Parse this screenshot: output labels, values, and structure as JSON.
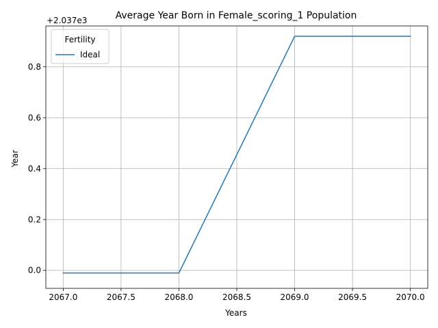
{
  "chart_data": {
    "type": "line",
    "title": "Average Year Born in Female_scoring_1 Population",
    "xlabel": "Years",
    "ylabel": "Year",
    "offset_text": "+2.037e3",
    "xlim": [
      2066.85,
      2070.15
    ],
    "ylim": [
      -0.0705,
      0.9605
    ],
    "x_ticks": [
      2067.0,
      2067.5,
      2068.0,
      2068.5,
      2069.0,
      2069.5,
      2070.0
    ],
    "x_tick_labels": [
      "2067.0",
      "2067.5",
      "2068.0",
      "2068.5",
      "2069.0",
      "2069.5",
      "2070.0"
    ],
    "y_ticks": [
      0.0,
      0.2,
      0.4,
      0.6,
      0.8
    ],
    "y_tick_labels": [
      "0.0",
      "0.2",
      "0.4",
      "0.6",
      "0.8"
    ],
    "grid": true,
    "legend": {
      "title": "Fertility",
      "placement": "upper-left"
    },
    "series": [
      {
        "name": "Ideal",
        "color": "#1f77b4",
        "x": [
          2067,
          2068,
          2069,
          2070
        ],
        "y": [
          -0.01,
          -0.01,
          0.92,
          0.92
        ]
      }
    ]
  }
}
